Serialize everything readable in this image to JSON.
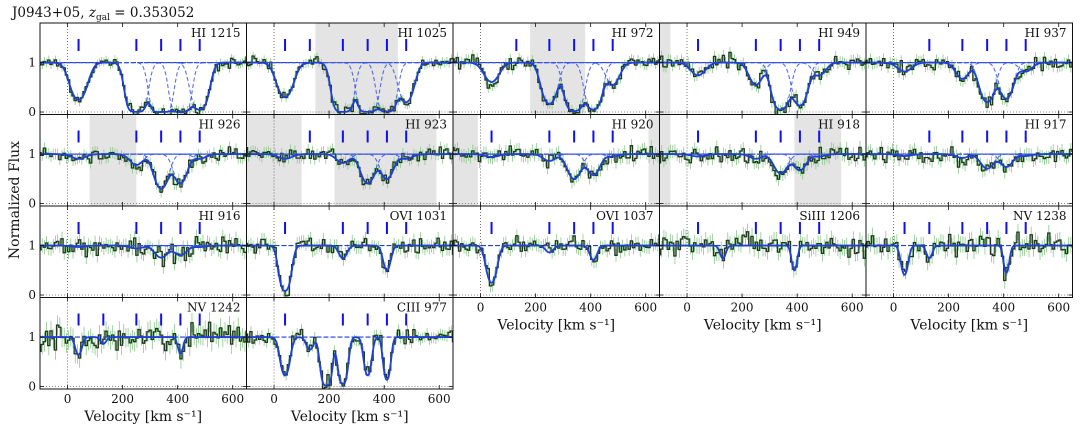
{
  "figure": {
    "title": "J0943+05, z_gal = 0.353052",
    "title_main": "J0943+05, ",
    "title_z": "z",
    "title_sub": "gal",
    "title_value": " = 0.353052",
    "y_axis_label": "Normalized Flux",
    "x_axis_label": "Velocity [km s⁻¹]"
  },
  "colors": {
    "data": "#1c3a1c",
    "errorbar": "#8cc88c",
    "model": "#1f3fd6",
    "component": "#3a56e6",
    "masked": "#e4e4e4",
    "tick_mark": "#1010ee"
  },
  "chart_data": {
    "type": "line",
    "xlim": [
      -100,
      650
    ],
    "ylim": [
      -0.05,
      1.8
    ],
    "x_ticks": [
      0,
      200,
      400,
      600
    ],
    "y_ticks": [
      0,
      1
    ],
    "components_kms": [
      40,
      130,
      250,
      340,
      410,
      480
    ],
    "panels": [
      {
        "label": "HI 1215",
        "masked": [],
        "ticks": [
          40,
          250,
          340,
          410,
          480
        ],
        "components": [
          [
            40,
            1.4,
            45
          ],
          [
            250,
            6,
            40
          ],
          [
            340,
            8,
            40
          ],
          [
            410,
            7,
            38
          ],
          [
            480,
            3,
            40
          ]
        ],
        "noise": 0.08
      },
      {
        "label": "HI 1025",
        "masked": [
          [
            150,
            450
          ]
        ],
        "ticks": [
          40,
          130,
          250,
          340,
          410,
          480
        ],
        "components": [
          [
            40,
            1.2,
            45
          ],
          [
            250,
            6,
            40
          ],
          [
            340,
            6,
            40
          ],
          [
            410,
            5,
            38
          ],
          [
            480,
            1.6,
            40
          ]
        ],
        "noise": 0.08
      },
      {
        "label": "HI 972",
        "masked": [
          [
            180,
            380
          ]
        ],
        "ticks": [
          130,
          250,
          340,
          410,
          480
        ],
        "components": [
          [
            40,
            0.5,
            45
          ],
          [
            250,
            1.8,
            40
          ],
          [
            340,
            4,
            40
          ],
          [
            410,
            3,
            38
          ],
          [
            480,
            0.6,
            40
          ]
        ],
        "noise": 0.09
      },
      {
        "label": "HI 949",
        "masked": [
          [
            -100,
            -60
          ]
        ],
        "ticks": [
          40,
          250,
          340,
          410,
          480
        ],
        "components": [
          [
            40,
            0.3,
            45
          ],
          [
            250,
            0.6,
            40
          ],
          [
            340,
            3,
            40
          ],
          [
            410,
            2,
            38
          ],
          [
            480,
            0.3,
            40
          ]
        ],
        "noise": 0.1
      },
      {
        "label": "HI 937",
        "masked": [],
        "ticks": [
          130,
          250,
          340,
          410,
          480
        ],
        "components": [
          [
            40,
            0.2,
            45
          ],
          [
            250,
            0.4,
            40
          ],
          [
            340,
            1.6,
            40
          ],
          [
            410,
            1.3,
            38
          ],
          [
            480,
            0.2,
            40
          ]
        ],
        "noise": 0.1
      },
      {
        "label": "HI 926",
        "masked": [
          [
            80,
            250
          ]
        ],
        "ticks": [
          40,
          250,
          340,
          410,
          480
        ],
        "components": [
          [
            40,
            0.1,
            45
          ],
          [
            250,
            0.25,
            40
          ],
          [
            340,
            1.2,
            40
          ],
          [
            410,
            0.9,
            38
          ],
          [
            480,
            0.1,
            40
          ]
        ],
        "noise": 0.1
      },
      {
        "label": "HI 923",
        "masked": [
          [
            -100,
            100
          ],
          [
            220,
            590
          ]
        ],
        "ticks": [
          130,
          250,
          340,
          410,
          480
        ],
        "components": [
          [
            40,
            0.1,
            45
          ],
          [
            250,
            0.2,
            40
          ],
          [
            340,
            0.9,
            40
          ],
          [
            410,
            0.7,
            38
          ],
          [
            480,
            0.1,
            40
          ]
        ],
        "noise": 0.1
      },
      {
        "label": "HI 920",
        "masked": [
          [
            -100,
            -10
          ],
          [
            610,
            650
          ]
        ],
        "ticks": [
          40,
          250,
          340,
          410,
          480
        ],
        "components": [
          [
            40,
            0.06,
            45
          ],
          [
            250,
            0.15,
            40
          ],
          [
            340,
            0.7,
            40
          ],
          [
            410,
            0.55,
            38
          ],
          [
            480,
            0.05,
            40
          ]
        ],
        "noise": 0.12
      },
      {
        "label": "HI 918",
        "masked": [
          [
            -100,
            -60
          ],
          [
            390,
            560
          ]
        ],
        "ticks": [
          40,
          250,
          340,
          410,
          480
        ],
        "components": [
          [
            40,
            0.05,
            45
          ],
          [
            250,
            0.1,
            40
          ],
          [
            340,
            0.5,
            40
          ],
          [
            410,
            0.4,
            38
          ],
          [
            480,
            0.05,
            40
          ]
        ],
        "noise": 0.12
      },
      {
        "label": "HI 917",
        "masked": [],
        "ticks": [
          130,
          250,
          340,
          410,
          480
        ],
        "components": [
          [
            40,
            0.04,
            45
          ],
          [
            250,
            0.08,
            40
          ],
          [
            340,
            0.35,
            40
          ],
          [
            410,
            0.3,
            38
          ],
          [
            480,
            0.04,
            40
          ]
        ],
        "noise": 0.12
      },
      {
        "label": "HI 916",
        "masked": [],
        "ticks": [
          40,
          250,
          340,
          410,
          480
        ],
        "components": [
          [
            40,
            0.03,
            45
          ],
          [
            250,
            0.06,
            40
          ],
          [
            340,
            0.28,
            40
          ],
          [
            410,
            0.22,
            38
          ],
          [
            480,
            0.03,
            40
          ]
        ],
        "noise": 0.13
      },
      {
        "label": "OVI 1031",
        "masked": [],
        "ticks": [
          40,
          250,
          340,
          410,
          480
        ],
        "components": [
          [
            40,
            2.5,
            28
          ],
          [
            250,
            0.3,
            25
          ],
          [
            410,
            0.7,
            22
          ]
        ],
        "noise": 0.12
      },
      {
        "label": "OVI 1037",
        "masked": [],
        "ticks": [
          40,
          250,
          340,
          410,
          480
        ],
        "components": [
          [
            40,
            1.4,
            28
          ],
          [
            250,
            0.15,
            25
          ],
          [
            410,
            0.35,
            22
          ]
        ],
        "noise": 0.12
      },
      {
        "label": "SiIII 1206",
        "masked": [],
        "ticks": [
          40,
          250,
          340,
          410,
          480
        ],
        "components": [
          [
            130,
            0.3,
            18
          ],
          [
            390,
            0.7,
            16
          ]
        ],
        "noise": 0.15
      },
      {
        "label": "NV 1238",
        "masked": [],
        "ticks": [
          40,
          130,
          250,
          340,
          410,
          480
        ],
        "components": [
          [
            40,
            0.9,
            20
          ],
          [
            130,
            0.3,
            18
          ],
          [
            410,
            0.8,
            16
          ]
        ],
        "noise": 0.15
      },
      {
        "label": "NV 1242",
        "masked": [],
        "ticks": [
          40,
          130,
          250,
          340,
          410,
          480
        ],
        "components": [
          [
            40,
            0.45,
            20
          ],
          [
            130,
            0.15,
            18
          ],
          [
            410,
            0.4,
            16
          ]
        ],
        "noise": 0.18
      },
      {
        "label": "CIII 977",
        "masked": [],
        "ticks": [
          40,
          250,
          340,
          410,
          480
        ],
        "components": [
          [
            40,
            1.5,
            25
          ],
          [
            130,
            0.3,
            22
          ],
          [
            190,
            4,
            24
          ],
          [
            250,
            3,
            22
          ],
          [
            340,
            1.5,
            20
          ],
          [
            410,
            2,
            18
          ]
        ],
        "noise": 0.1
      }
    ]
  }
}
